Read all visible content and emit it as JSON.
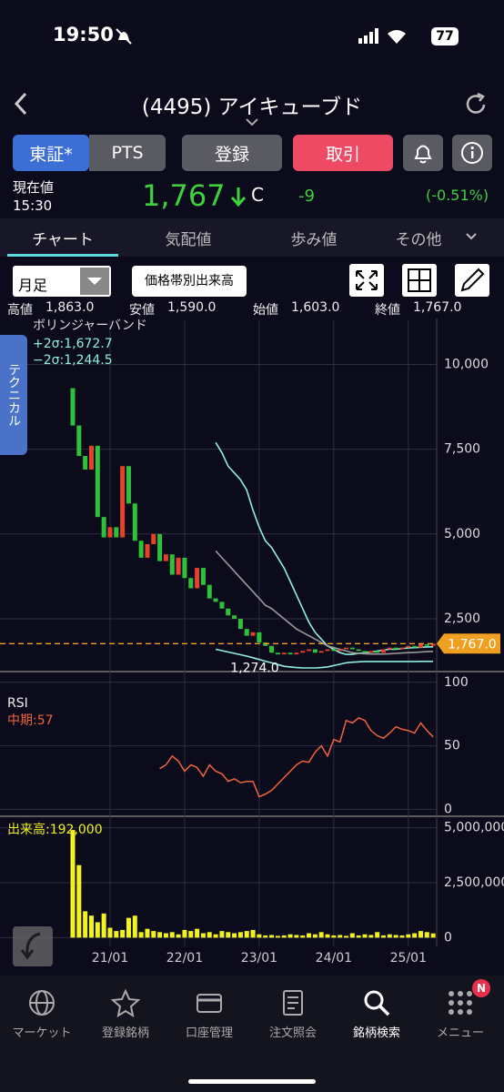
{
  "status": {
    "time": "19:50",
    "battery": "77"
  },
  "header": {
    "title": "(4495) アイキューブド"
  },
  "buttons": [
    "東証*",
    "PTS",
    "登録",
    "取引"
  ],
  "quote": {
    "label": "現在値",
    "time": "15:30",
    "price": "1,767",
    "flag": "C",
    "change": "-9",
    "change_pct": "(-0.51%)"
  },
  "tabs": [
    "チャート",
    "気配値",
    "歩み値",
    "その他"
  ],
  "toolbar": {
    "period": "月足",
    "volume_profile": "価格帯別出来高"
  },
  "ohlc": [
    {
      "label": "高値",
      "value": "1,863.0"
    },
    {
      "label": "安値",
      "value": "1,590.0"
    },
    {
      "label": "始値",
      "value": "1,603.0"
    },
    {
      "label": "終値",
      "value": "1,767.0"
    }
  ],
  "side_tab": "テクニカル",
  "chart_data": [
    {
      "type": "candlestick",
      "title": "ボリンジャーバンド",
      "open": [
        9300,
        8200,
        7300,
        6900,
        7600,
        5500,
        4900,
        5200,
        4900,
        7000,
        5900,
        4800,
        4300,
        4700,
        5000,
        4200,
        4400,
        3800,
        4300,
        3700,
        3400,
        4000,
        3500,
        3100,
        3000,
        2800,
        2600,
        2500,
        2200,
        2000,
        2100,
        1800,
        1700,
        1500,
        1450,
        1500,
        1450,
        1500,
        1550,
        1600,
        1500,
        1550,
        1600,
        1550,
        1600,
        1650,
        1600,
        1550,
        1500,
        1550,
        1500,
        1600,
        1650,
        1600,
        1650,
        1700,
        1650,
        1750,
        1700
      ],
      "close": [
        8200,
        7300,
        6900,
        7600,
        5500,
        4900,
        5200,
        4900,
        7000,
        5900,
        4800,
        4300,
        4700,
        5000,
        4200,
        4400,
        3800,
        4300,
        3700,
        3400,
        4000,
        3500,
        3100,
        3000,
        2800,
        2600,
        2500,
        2200,
        2000,
        2100,
        1800,
        1700,
        1500,
        1450,
        1500,
        1450,
        1500,
        1550,
        1600,
        1500,
        1550,
        1600,
        1550,
        1600,
        1650,
        1600,
        1550,
        1500,
        1550,
        1500,
        1600,
        1650,
        1600,
        1650,
        1700,
        1650,
        1750,
        1700,
        1767
      ],
      "up_color": "#e8402a",
      "down_color": "#2ec23a",
      "series": [
        {
          "name": "+2σ:1,672.7",
          "color": "#8ff0dc",
          "values": [
            null,
            null,
            null,
            null,
            null,
            null,
            null,
            null,
            null,
            null,
            null,
            null,
            null,
            null,
            null,
            null,
            null,
            null,
            null,
            null,
            null,
            null,
            null,
            7700,
            7400,
            7000,
            6800,
            6600,
            6300,
            5700,
            5200,
            4800,
            4600,
            4300,
            4000,
            3600,
            3200,
            2800,
            2400,
            2100,
            1900,
            1700,
            1600,
            1500,
            1450,
            1450,
            1480,
            1500,
            1520,
            1550,
            1580,
            1600,
            1600,
            1620,
            1640,
            1650,
            1660,
            1670,
            1672.7
          ]
        },
        {
          "color": "#9a9a9a",
          "values": [
            null,
            null,
            null,
            null,
            null,
            null,
            null,
            null,
            null,
            null,
            null,
            null,
            null,
            null,
            null,
            null,
            null,
            null,
            null,
            null,
            null,
            null,
            null,
            4500,
            4300,
            4100,
            3900,
            3700,
            3500,
            3300,
            3100,
            2900,
            2800,
            2650,
            2500,
            2350,
            2200,
            2100,
            2000,
            1900,
            1800,
            1700,
            1650,
            1600,
            1550,
            1500,
            1480,
            1470,
            1460,
            1460,
            1460,
            1470,
            1480,
            1490,
            1500,
            1510,
            1520,
            1530,
            1540
          ]
        },
        {
          "name": "−2σ:1,244.5",
          "color": "#8ff0dc",
          "values": [
            null,
            null,
            null,
            null,
            null,
            null,
            null,
            null,
            null,
            null,
            null,
            null,
            null,
            null,
            null,
            null,
            null,
            null,
            null,
            null,
            null,
            null,
            null,
            1600,
            1560,
            1520,
            1480,
            1440,
            1400,
            1350,
            1300,
            1250,
            1200,
            1150,
            1100,
            1080,
            1060,
            1050,
            1050,
            1050,
            1060,
            1080,
            1120,
            1160,
            1200,
            1220,
            1230,
            1240,
            1240,
            1240,
            1240,
            1240,
            1240,
            1240,
            1240,
            1242,
            1243,
            1244,
            1244.5
          ]
        }
      ],
      "ylim": [
        970,
        11300
      ],
      "yticks": [
        {
          "value": 2500,
          "label": "2,500"
        },
        {
          "value": 5000,
          "label": "5,000"
        },
        {
          "value": 7500,
          "label": "7,500"
        },
        {
          "value": 10000,
          "label": "10,000"
        }
      ],
      "annotation": {
        "value": 1274,
        "label": "1,274.0"
      },
      "last": {
        "value": 1767,
        "label": "1,767.0",
        "color": "#f0a020"
      }
    },
    {
      "type": "line",
      "title": "RSI",
      "subtitle": "中期:57",
      "color": "#f0643c",
      "values": [
        null,
        null,
        null,
        null,
        null,
        null,
        null,
        null,
        null,
        null,
        null,
        null,
        null,
        null,
        32,
        35,
        42,
        38,
        30,
        35,
        33,
        26,
        35,
        30,
        28,
        22,
        24,
        21,
        22,
        22,
        10,
        12,
        15,
        20,
        25,
        30,
        35,
        38,
        37,
        45,
        50,
        42,
        55,
        53,
        70,
        68,
        72,
        70,
        62,
        58,
        56,
        60,
        65,
        63,
        62,
        60,
        68,
        62,
        57
      ],
      "ylim": [
        -4,
        107
      ],
      "yticks": [
        0,
        50,
        100
      ]
    },
    {
      "type": "bar",
      "title": "出来高:192,000",
      "color": "#f2f21e",
      "categories": [
        null,
        null,
        null,
        null,
        null,
        null,
        "21/01",
        null,
        null,
        null,
        null,
        null,
        null,
        null,
        null,
        null,
        null,
        null,
        "22/01",
        null,
        null,
        null,
        null,
        null,
        null,
        null,
        null,
        null,
        null,
        null,
        "23/01",
        null,
        null,
        null,
        null,
        null,
        null,
        null,
        null,
        null,
        null,
        null,
        "24/01",
        null,
        null,
        null,
        null,
        null,
        null,
        null,
        null,
        null,
        null,
        null,
        "25/01",
        null,
        null,
        null,
        null
      ],
      "values": [
        4900000,
        3300000,
        1200000,
        1000000,
        700000,
        1100000,
        450000,
        300000,
        350000,
        900000,
        1000000,
        250000,
        400000,
        300000,
        250000,
        200000,
        250000,
        150000,
        350000,
        300000,
        400000,
        200000,
        250000,
        150000,
        300000,
        250000,
        200000,
        250000,
        300000,
        350000,
        150000,
        100000,
        120000,
        80000,
        100000,
        150000,
        120000,
        100000,
        200000,
        150000,
        250000,
        150000,
        100000,
        120000,
        80000,
        200000,
        100000,
        150000,
        120000,
        250000,
        100000,
        150000,
        120000,
        100000,
        150000,
        200000,
        300000,
        250000,
        192000
      ],
      "ylim": [
        -400000,
        5400000
      ],
      "yticks": [
        0,
        {
          "value": 2500000,
          "label": "2,500,000"
        },
        {
          "value": 5000000,
          "label": "5,000,000"
        }
      ]
    }
  ],
  "nav": [
    "マーケット",
    "登録銘柄",
    "口座管理",
    "注文照会",
    "銘柄検索",
    "メニュー"
  ],
  "nav_badge": "N"
}
